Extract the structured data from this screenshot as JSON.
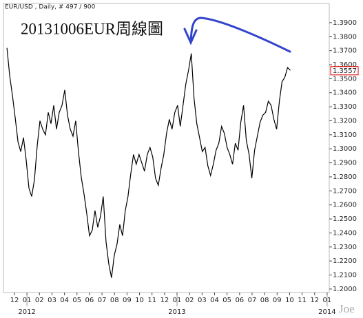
{
  "chart_data": {
    "type": "line",
    "header": "EUR/USD , Daily, # 497 / 900",
    "title": "20131006EUR周線圖",
    "watermark": "Joe",
    "color": "#000000",
    "xlim": [
      -0.88,
      25.17
    ],
    "ylim": [
      1.1975,
      1.4037
    ],
    "xticks": [
      {
        "value": 0,
        "label": "12"
      },
      {
        "value": 1,
        "label": "01"
      },
      {
        "value": 2,
        "label": "02"
      },
      {
        "value": 3,
        "label": "03"
      },
      {
        "value": 4,
        "label": "04"
      },
      {
        "value": 5,
        "label": "05"
      },
      {
        "value": 6,
        "label": "06"
      },
      {
        "value": 7,
        "label": "07"
      },
      {
        "value": 8,
        "label": "08"
      },
      {
        "value": 9,
        "label": "09"
      },
      {
        "value": 10,
        "label": "10"
      },
      {
        "value": 11,
        "label": "11"
      },
      {
        "value": 12,
        "label": "12"
      },
      {
        "value": 13,
        "label": "01"
      },
      {
        "value": 14,
        "label": "02"
      },
      {
        "value": 15,
        "label": "03"
      },
      {
        "value": 16,
        "label": "04"
      },
      {
        "value": 17,
        "label": "05"
      },
      {
        "value": 18,
        "label": "06"
      },
      {
        "value": 19,
        "label": "07"
      },
      {
        "value": 20,
        "label": "08"
      },
      {
        "value": 21,
        "label": "09"
      },
      {
        "value": 22,
        "label": "10"
      },
      {
        "value": 23,
        "label": "11"
      },
      {
        "value": 24,
        "label": "12"
      },
      {
        "value": 25,
        "label": "01"
      }
    ],
    "year_labels": [
      {
        "value": 1,
        "label": "2012"
      },
      {
        "value": 13,
        "label": "2013"
      },
      {
        "value": 25,
        "label": "2014"
      }
    ],
    "yticks": [
      {
        "value": 1.2,
        "label": "1.2000"
      },
      {
        "value": 1.21,
        "label": "1.2100"
      },
      {
        "value": 1.22,
        "label": "1.2200"
      },
      {
        "value": 1.23,
        "label": "1.2300"
      },
      {
        "value": 1.24,
        "label": "1.2400"
      },
      {
        "value": 1.25,
        "label": "1.2500"
      },
      {
        "value": 1.26,
        "label": "1.2600"
      },
      {
        "value": 1.27,
        "label": "1.2700"
      },
      {
        "value": 1.28,
        "label": "1.2800"
      },
      {
        "value": 1.29,
        "label": "1.2900"
      },
      {
        "value": 1.3,
        "label": "1.3000"
      },
      {
        "value": 1.31,
        "label": "1.3100"
      },
      {
        "value": 1.32,
        "label": "1.3200"
      },
      {
        "value": 1.33,
        "label": "1.3300"
      },
      {
        "value": 1.34,
        "label": "1.3400"
      },
      {
        "value": 1.35,
        "label": "1.3500"
      },
      {
        "value": 1.36,
        "label": "1.3600"
      },
      {
        "value": 1.37,
        "label": "1.3700"
      },
      {
        "value": 1.38,
        "label": "1.3800"
      },
      {
        "value": 1.39,
        "label": "1.3900"
      }
    ],
    "last_price": 1.3557,
    "last_price_color": "#e00000",
    "x": [
      -0.6,
      -0.38,
      -0.16,
      0.06,
      0.28,
      0.5,
      0.72,
      0.94,
      1.16,
      1.38,
      1.6,
      1.82,
      2.04,
      2.26,
      2.48,
      2.7,
      2.92,
      3.14,
      3.36,
      3.58,
      3.8,
      4.02,
      4.24,
      4.46,
      4.68,
      4.9,
      5.12,
      5.34,
      5.56,
      5.78,
      6.0,
      6.22,
      6.44,
      6.66,
      6.88,
      7.1,
      7.32,
      7.54,
      7.76,
      7.98,
      8.2,
      8.42,
      8.64,
      8.86,
      9.08,
      9.3,
      9.52,
      9.74,
      9.96,
      10.18,
      10.4,
      10.62,
      10.84,
      11.06,
      11.28,
      11.5,
      11.72,
      11.94,
      12.16,
      12.38,
      12.6,
      12.82,
      13.04,
      13.26,
      13.48,
      13.7,
      13.92,
      14.14,
      14.36,
      14.58,
      14.8,
      15.02,
      15.24,
      15.46,
      15.68,
      15.9,
      16.12,
      16.34,
      16.56,
      16.78,
      17.0,
      17.22,
      17.44,
      17.66,
      17.88,
      18.1,
      18.32,
      18.54,
      18.76,
      18.98,
      19.2,
      19.42,
      19.64,
      19.86,
      20.08,
      20.3,
      20.52,
      20.74,
      20.96,
      21.18,
      21.4,
      21.62,
      21.84,
      22.06
    ],
    "values": [
      1.372,
      1.352,
      1.338,
      1.322,
      1.305,
      1.298,
      1.308,
      1.292,
      1.272,
      1.266,
      1.278,
      1.302,
      1.32,
      1.314,
      1.31,
      1.326,
      1.318,
      1.331,
      1.314,
      1.326,
      1.331,
      1.342,
      1.324,
      1.314,
      1.309,
      1.32,
      1.298,
      1.28,
      1.268,
      1.254,
      1.238,
      1.242,
      1.256,
      1.244,
      1.252,
      1.266,
      1.234,
      1.218,
      1.208,
      1.224,
      1.232,
      1.246,
      1.238,
      1.256,
      1.266,
      1.282,
      1.296,
      1.289,
      1.296,
      1.29,
      1.284,
      1.296,
      1.301,
      1.294,
      1.279,
      1.274,
      1.286,
      1.296,
      1.311,
      1.321,
      1.314,
      1.326,
      1.331,
      1.316,
      1.331,
      1.346,
      1.356,
      1.368,
      1.336,
      1.318,
      1.308,
      1.298,
      1.301,
      1.288,
      1.281,
      1.289,
      1.299,
      1.304,
      1.316,
      1.311,
      1.301,
      1.296,
      1.289,
      1.304,
      1.299,
      1.319,
      1.331,
      1.306,
      1.296,
      1.279,
      1.299,
      1.309,
      1.319,
      1.324,
      1.326,
      1.334,
      1.331,
      1.321,
      1.314,
      1.334,
      1.348,
      1.351,
      1.358,
      1.356
    ]
  }
}
